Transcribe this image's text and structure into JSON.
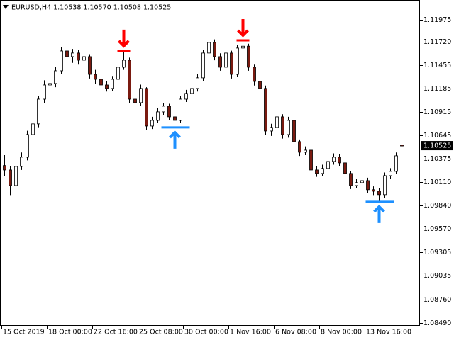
{
  "chart_data": {
    "type": "candlestick",
    "title": "EURUSD,H4  1.10538 1.10570 1.10508 1.10525",
    "bull_color": "#ffffff",
    "bear_color": "#7a1a10",
    "outline_color": "#000000",
    "last_price": 1.10525,
    "ylim": [
      1.08457,
      1.12203
    ],
    "yticks": [
      1.11975,
      {
        "value": 1.1172,
        "label": "1.11720"
      },
      1.11455,
      1.11185,
      1.10915,
      1.10645,
      1.10375,
      {
        "value": 1.1011,
        "label": "1.10110"
      },
      {
        "value": 1.0984,
        "label": "1.09840"
      },
      {
        "value": 1.0957,
        "label": "1.09570"
      },
      1.09305,
      1.09035,
      {
        "value": 1.0876,
        "label": "1.08760"
      },
      {
        "value": 1.0849,
        "label": "1.08490"
      }
    ],
    "x_labels": [
      "15 Oct 2019",
      "18 Oct 00:00",
      "22 Oct 16:00",
      "25 Oct 08:00",
      "30 Oct 00:00",
      "1 Nov 16:00",
      "6 Nov 08:00",
      "8 Nov 00:00",
      "13 Nov 16:00"
    ],
    "candles": [
      [
        1.103,
        1.1042,
        1.1018,
        1.10249
      ],
      [
        1.10249,
        1.1029,
        1.0996,
        1.1007
      ],
      [
        1.1007,
        1.1034,
        1.1003,
        1.1029
      ],
      [
        1.1029,
        1.1045,
        1.1025,
        1.10396
      ],
      [
        1.10396,
        1.107,
        1.1036,
        1.10656
      ],
      [
        1.10656,
        1.1083,
        1.106,
        1.10779
      ],
      [
        1.10779,
        1.111,
        1.1074,
        1.11063
      ],
      [
        1.11063,
        1.1128,
        1.1102,
        1.11226
      ],
      [
        1.11226,
        1.1129,
        1.1115,
        1.11243
      ],
      [
        1.11243,
        1.1143,
        1.112,
        1.11389
      ],
      [
        1.11389,
        1.1166,
        1.1135,
        1.11617
      ],
      [
        1.11617,
        1.117,
        1.115,
        1.11552
      ],
      [
        1.11552,
        1.1164,
        1.1148,
        1.11593
      ],
      [
        1.11593,
        1.1163,
        1.1146,
        1.11511
      ],
      [
        1.11511,
        1.116,
        1.1147,
        1.11552
      ],
      [
        1.11552,
        1.1158,
        1.113,
        1.11348
      ],
      [
        1.11348,
        1.114,
        1.1124,
        1.11291
      ],
      [
        1.11291,
        1.1133,
        1.1118,
        1.11226
      ],
      [
        1.11226,
        1.1127,
        1.1115,
        1.11186
      ],
      [
        1.11186,
        1.1133,
        1.1116,
        1.11291
      ],
      [
        1.11291,
        1.1147,
        1.1125,
        1.1143
      ],
      [
        1.1143,
        1.11618,
        1.114,
        1.11511
      ],
      [
        1.11511,
        1.1154,
        1.1102,
        1.11063
      ],
      [
        1.11063,
        1.1111,
        1.1098,
        1.11023
      ],
      [
        1.11023,
        1.1123,
        1.1099,
        1.11186
      ],
      [
        1.11186,
        1.112,
        1.1071,
        1.10754
      ],
      [
        1.10754,
        1.1086,
        1.1072,
        1.10819
      ],
      [
        1.10819,
        1.1096,
        1.1079,
        1.10917
      ],
      [
        1.10917,
        1.1102,
        1.1088,
        1.10982
      ],
      [
        1.10982,
        1.1101,
        1.1082,
        1.1086
      ],
      [
        1.1086,
        1.109,
        1.10738,
        1.10819
      ],
      [
        1.10819,
        1.111,
        1.1079,
        1.11063
      ],
      [
        1.11063,
        1.1117,
        1.1103,
        1.11129
      ],
      [
        1.11129,
        1.1123,
        1.1109,
        1.11186
      ],
      [
        1.11186,
        1.1135,
        1.1115,
        1.11308
      ],
      [
        1.11308,
        1.1163,
        1.1127,
        1.11593
      ],
      [
        1.11593,
        1.1176,
        1.1156,
        1.11715
      ],
      [
        1.11715,
        1.1175,
        1.1151,
        1.11552
      ],
      [
        1.11552,
        1.1159,
        1.1139,
        1.1143
      ],
      [
        1.1143,
        1.1164,
        1.114,
        1.11593
      ],
      [
        1.11593,
        1.1162,
        1.113,
        1.11348
      ],
      [
        1.11348,
        1.1169,
        1.1132,
        1.1165
      ],
      [
        1.1165,
        1.11739,
        1.1161,
        1.11672
      ],
      [
        1.11672,
        1.117,
        1.1139,
        1.1143
      ],
      [
        1.1143,
        1.1146,
        1.1122,
        1.11267
      ],
      [
        1.11267,
        1.113,
        1.1114,
        1.11186
      ],
      [
        1.11186,
        1.1122,
        1.1065,
        1.10697
      ],
      [
        1.10697,
        1.1078,
        1.1064,
        1.10738
      ],
      [
        1.10738,
        1.109,
        1.107,
        1.1086
      ],
      [
        1.1086,
        1.1089,
        1.1061,
        1.10656
      ],
      [
        1.10656,
        1.1086,
        1.1062,
        1.10819
      ],
      [
        1.10819,
        1.1085,
        1.1053,
        1.10575
      ],
      [
        1.10575,
        1.106,
        1.1041,
        1.10453
      ],
      [
        1.10453,
        1.1052,
        1.1042,
        1.10477
      ],
      [
        1.10477,
        1.105,
        1.1021,
        1.10249
      ],
      [
        1.10249,
        1.1029,
        1.1017,
        1.10209
      ],
      [
        1.10209,
        1.1031,
        1.1018,
        1.10266
      ],
      [
        1.10266,
        1.1039,
        1.1023,
        1.10347
      ],
      [
        1.10347,
        1.1044,
        1.1031,
        1.10396
      ],
      [
        1.10396,
        1.1043,
        1.1029,
        1.10331
      ],
      [
        1.10331,
        1.1036,
        1.1017,
        1.10209
      ],
      [
        1.10209,
        1.1024,
        1.1003,
        1.1007
      ],
      [
        1.1007,
        1.1015,
        1.1004,
        1.10103
      ],
      [
        1.10103,
        1.1017,
        1.1006,
        1.10127
      ],
      [
        1.10127,
        1.1016,
        1.0998,
        1.10022
      ],
      [
        1.10022,
        1.1006,
        1.0996,
        1.10005
      ],
      [
        1.10005,
        1.1004,
        1.09883,
        1.09965
      ],
      [
        1.09965,
        1.1022,
        1.0993,
        1.10184
      ],
      [
        1.10184,
        1.1027,
        1.1015,
        1.10233
      ],
      [
        1.10233,
        1.1045,
        1.102,
        1.10412
      ],
      [
        1.10538,
        1.1057,
        1.10508,
        1.10525
      ]
    ],
    "signals": [
      {
        "index": 21,
        "direction": "down",
        "value": 1.11618,
        "color": "#ff0000"
      },
      {
        "index": 30,
        "direction": "up",
        "value": 1.10738,
        "color": "#1e90ff"
      },
      {
        "index": 42,
        "direction": "down",
        "value": 1.11739,
        "color": "#ff0000"
      },
      {
        "index": 66,
        "direction": "up",
        "value": 1.09883,
        "color": "#1e90ff"
      }
    ]
  }
}
